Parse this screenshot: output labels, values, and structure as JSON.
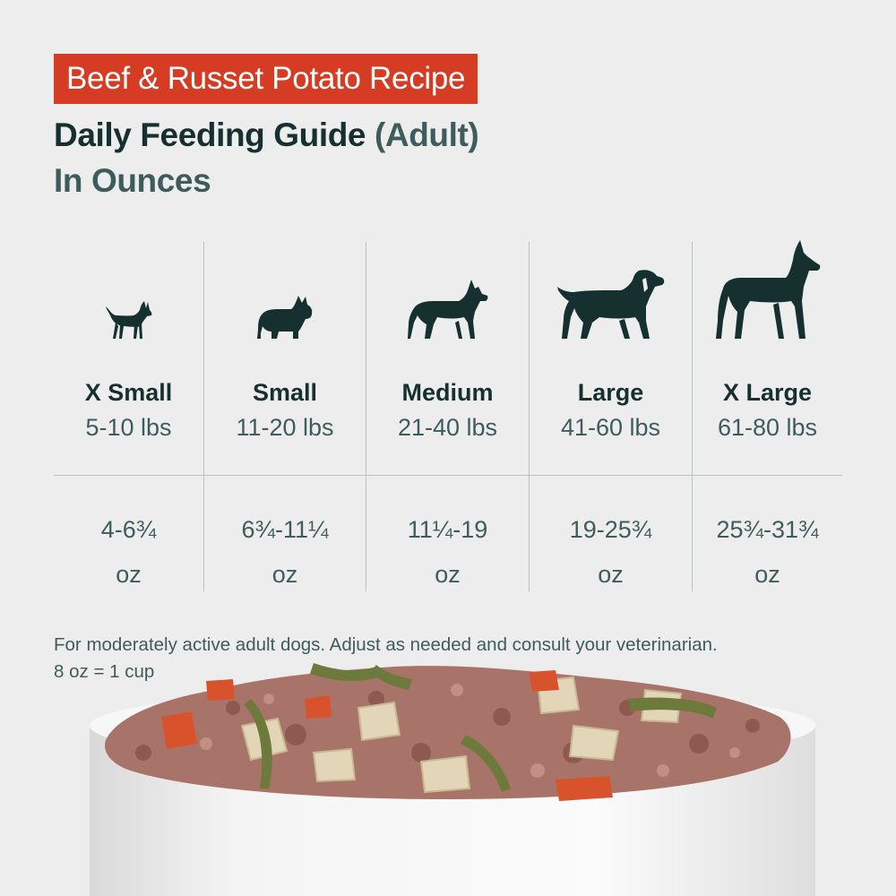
{
  "header": {
    "badge": "Beef & Russet Potato Recipe",
    "title_main": "Daily Feeding Guide",
    "title_paren": "(Adult)",
    "subtitle": "In Ounces"
  },
  "columns": [
    {
      "size": "X Small",
      "weight": "5-10 lbs",
      "amount": "4-6¾",
      "unit": "oz",
      "icon": "chihuahua-icon"
    },
    {
      "size": "Small",
      "weight": "11-20 lbs",
      "amount": "6¾-11¼",
      "unit": "oz",
      "icon": "bulldog-icon"
    },
    {
      "size": "Medium",
      "weight": "21-40 lbs",
      "amount": "11¼-19",
      "unit": "oz",
      "icon": "medium-dog-icon"
    },
    {
      "size": "Large",
      "weight": "41-60 lbs",
      "amount": "19-25¾",
      "unit": "oz",
      "icon": "labrador-icon"
    },
    {
      "size": "X Large",
      "weight": "61-80 lbs",
      "amount": "25¾-31¾",
      "unit": "oz",
      "icon": "great-dane-icon"
    }
  ],
  "note": {
    "line1": "For moderately active adult dogs. Adjust as needed and consult your veterinarian.",
    "line2": "8 oz = 1 cup"
  },
  "colors": {
    "accent": "#d63b24",
    "text_dark": "#15302f",
    "text_muted": "#3f5c5c",
    "background": "#ededed"
  }
}
